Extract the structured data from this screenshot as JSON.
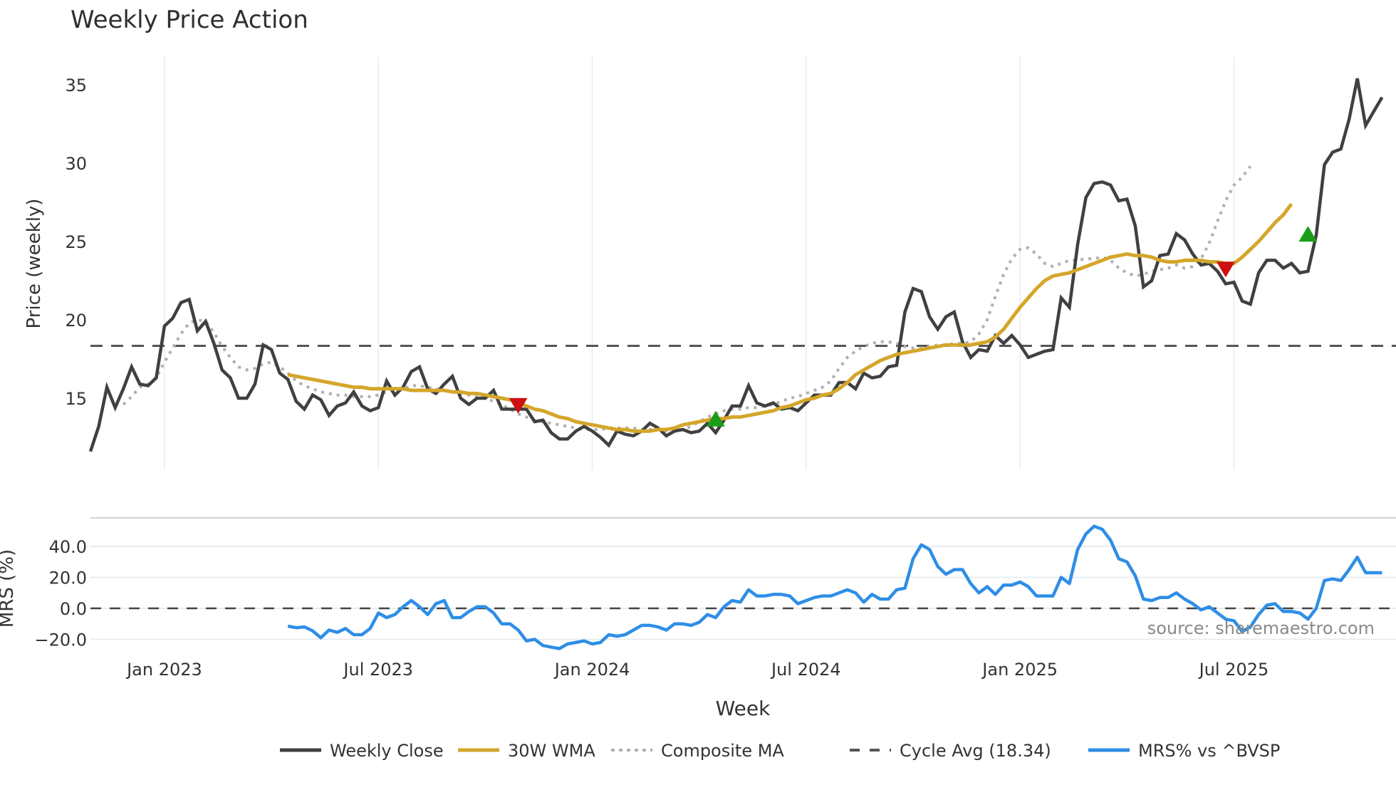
{
  "title": "Weekly Price Action",
  "source": "source: sharemaestro.com",
  "price_panel": {
    "ylabel": "Price (weekly)",
    "yticks": [
      15,
      20,
      25,
      30,
      35
    ]
  },
  "mrs_panel": {
    "ylabel": "MRS (%)",
    "yticks": [
      "−20.0",
      "0.0",
      "20.0",
      "40.0"
    ]
  },
  "xaxis": {
    "label": "Week",
    "ticks": [
      "Jan 2023",
      "Jul 2023",
      "Jan 2024",
      "Jul 2024",
      "Jan 2025",
      "Jul 2025"
    ]
  },
  "legend": [
    {
      "label": "Weekly Close",
      "color": "#404040",
      "style": "solid"
    },
    {
      "label": "30W WMA",
      "color": "#d4a62a",
      "style": "solid"
    },
    {
      "label": "Composite MA",
      "color": "#b0b0b0",
      "style": "dotted"
    },
    {
      "label": "Cycle Avg (18.34)",
      "color": "#555555",
      "style": "dashed"
    },
    {
      "label": "MRS% vs ^BVSP",
      "color": "#2e8ee6",
      "style": "solid"
    }
  ],
  "colors": {
    "close": "#404040",
    "wma": "#d4a62a",
    "composite": "#b0b0b0",
    "cycle": "#555555",
    "mrs": "#2e8ee6",
    "buy": "#1a9e1a",
    "sell": "#cc1111",
    "grid": "#e8ecf2"
  },
  "chart_data": [
    {
      "type": "line",
      "title": "Weekly Price Action",
      "xlabel": "Week",
      "ylabel": "Price (weekly)",
      "ylim": [
        10.8,
        36.5
      ],
      "x_start_week_offset": -9,
      "x_tick_labels": [
        "Jan 2023",
        "Jul 2023",
        "Jan 2024",
        "Jul 2024",
        "Jan 2025",
        "Jul 2025"
      ],
      "x_tick_week_index": [
        9,
        35,
        61,
        87,
        113,
        139
      ],
      "cycle_avg": 18.34,
      "series": [
        {
          "name": "Weekly Close",
          "values": [
            11.6,
            13.2,
            15.7,
            14.4,
            15.6,
            17.0,
            15.9,
            15.8,
            16.3,
            19.6,
            20.1,
            21.1,
            21.3,
            19.3,
            19.9,
            18.5,
            16.8,
            16.3,
            15.0,
            15.0,
            15.9,
            18.4,
            18.1,
            16.6,
            16.2,
            14.8,
            14.3,
            15.2,
            14.9,
            13.9,
            14.5,
            14.7,
            15.4,
            14.5,
            14.2,
            14.4,
            16.1,
            15.2,
            15.7,
            16.7,
            17.0,
            15.6,
            15.3,
            15.9,
            16.4,
            15.0,
            14.6,
            15.0,
            15.0,
            15.5,
            14.3,
            14.3,
            14.3,
            14.3,
            13.5,
            13.6,
            12.8,
            12.4,
            12.4,
            12.9,
            13.2,
            12.9,
            12.5,
            12.0,
            12.9,
            12.7,
            12.6,
            12.9,
            13.4,
            13.1,
            12.6,
            12.9,
            13.0,
            12.8,
            12.9,
            13.4,
            12.8,
            13.6,
            14.5,
            14.5,
            15.8,
            14.7,
            14.5,
            14.7,
            14.3,
            14.4,
            14.2,
            14.7,
            15.2,
            15.2,
            15.2,
            16.0,
            16.0,
            15.6,
            16.6,
            16.3,
            16.4,
            17.0,
            17.1,
            20.5,
            22.0,
            21.8,
            20.2,
            19.4,
            20.2,
            20.5,
            18.6,
            17.6,
            18.1,
            18.0,
            19.0,
            18.5,
            19.0,
            18.4,
            17.6,
            17.8,
            18.0,
            18.1,
            21.4,
            20.8,
            24.8,
            27.8,
            28.7,
            28.8,
            28.6,
            27.6,
            27.7,
            26.0,
            22.1,
            22.5,
            24.1,
            24.2,
            25.5,
            25.1,
            24.2,
            23.5,
            23.6,
            23.1,
            22.3,
            22.4,
            21.2,
            21.0,
            23.0,
            23.8,
            23.8,
            23.3,
            23.6,
            23.0,
            23.1,
            25.4,
            29.9,
            30.7,
            30.9,
            32.8,
            35.4,
            32.4,
            33.3,
            34.2
          ]
        },
        {
          "name": "30W WMA",
          "start_index": 24,
          "values": [
            16.5,
            16.4,
            16.3,
            16.2,
            16.1,
            16.0,
            15.9,
            15.8,
            15.7,
            15.7,
            15.6,
            15.6,
            15.6,
            15.6,
            15.6,
            15.5,
            15.5,
            15.5,
            15.5,
            15.5,
            15.4,
            15.4,
            15.3,
            15.3,
            15.2,
            15.1,
            15.0,
            14.9,
            14.7,
            14.5,
            14.3,
            14.2,
            14.0,
            13.8,
            13.7,
            13.5,
            13.4,
            13.3,
            13.2,
            13.1,
            13.0,
            13.0,
            12.9,
            12.9,
            12.9,
            13.0,
            13.0,
            13.1,
            13.3,
            13.4,
            13.5,
            13.6,
            13.7,
            13.7,
            13.8,
            13.8,
            13.9,
            14.0,
            14.1,
            14.2,
            14.4,
            14.5,
            14.7,
            14.9,
            15.0,
            15.2,
            15.3,
            15.6,
            16.0,
            16.5,
            16.8,
            17.1,
            17.4,
            17.6,
            17.8,
            17.9,
            18.0,
            18.1,
            18.2,
            18.3,
            18.4,
            18.4,
            18.4,
            18.4,
            18.5,
            18.6,
            18.9,
            19.4,
            20.1,
            20.8,
            21.4,
            22.0,
            22.5,
            22.8,
            22.9,
            23.0,
            23.2,
            23.4,
            23.6,
            23.8,
            24.0,
            24.1,
            24.2,
            24.1,
            24.1,
            24.0,
            23.8,
            23.7,
            23.7,
            23.8,
            23.8,
            23.8,
            23.7,
            23.7,
            23.6,
            23.6,
            24.0,
            24.5,
            25.0,
            25.6,
            26.2,
            26.7,
            27.4
          ]
        },
        {
          "name": "Composite MA",
          "start_index": 4,
          "values": [
            14.6,
            15.1,
            15.7,
            15.9,
            16.3,
            17.3,
            18.2,
            19.1,
            19.8,
            20.0,
            19.9,
            19.2,
            18.3,
            17.6,
            17.0,
            16.8,
            16.9,
            17.2,
            17.3,
            17.0,
            16.6,
            16.1,
            15.8,
            15.6,
            15.4,
            15.3,
            15.2,
            15.2,
            15.1,
            15.1,
            15.1,
            15.2,
            15.4,
            15.5,
            15.6,
            15.8,
            15.8,
            15.7,
            15.6,
            15.5,
            15.4,
            15.3,
            15.2,
            15.1,
            15.0,
            14.8,
            14.6,
            14.3,
            14.0,
            13.8,
            13.6,
            13.5,
            13.4,
            13.3,
            13.2,
            13.1,
            13.0,
            13.0,
            13.0,
            13.1,
            13.1,
            13.1,
            13.1,
            13.0,
            13.0,
            13.0,
            12.9,
            12.9,
            13.0,
            13.2,
            13.5,
            13.8,
            14.0,
            14.2,
            14.3,
            14.3,
            14.4,
            14.4,
            14.5,
            14.6,
            14.8,
            15.0,
            15.1,
            15.3,
            15.5,
            15.7,
            16.1,
            16.9,
            17.6,
            18.0,
            18.3,
            18.5,
            18.6,
            18.6,
            18.5,
            18.3,
            18.2,
            18.2,
            18.3,
            18.4,
            18.4,
            18.5,
            18.5,
            18.6,
            19.1,
            20.0,
            21.5,
            22.9,
            23.9,
            24.5,
            24.6,
            24.2,
            23.6,
            23.4,
            23.6,
            23.8,
            23.8,
            23.9,
            23.9,
            24.0,
            23.8,
            23.3,
            23.0,
            22.8,
            22.9,
            23.1,
            23.2,
            23.3,
            23.5,
            23.3,
            23.4,
            23.9,
            24.9,
            26.3,
            27.6,
            28.6,
            29.1,
            29.8
          ]
        },
        {
          "name": "Cycle Avg (18.34)",
          "values": [
            18.34
          ]
        }
      ],
      "markers": [
        {
          "type": "sell",
          "week_index": 52,
          "value": 14.6
        },
        {
          "type": "buy",
          "week_index": 76,
          "value": 13.6
        },
        {
          "type": "sell",
          "week_index": 138,
          "value": 23.3
        },
        {
          "type": "buy",
          "week_index": 148,
          "value": 25.4
        }
      ]
    },
    {
      "type": "line",
      "title": "",
      "xlabel": "Week",
      "ylabel": "MRS (%)",
      "ylim": [
        -25,
        55
      ],
      "zero_line": 0,
      "series": [
        {
          "name": "MRS% vs ^BVSP",
          "start_index": 24,
          "values": [
            -11.5,
            -12.5,
            -12,
            -14.5,
            -19,
            -14,
            -15.5,
            -13,
            -17,
            -17,
            -13,
            -3,
            -6,
            -4,
            1,
            5,
            1,
            -4,
            3,
            5,
            -6,
            -6,
            -2,
            1,
            1,
            -3,
            -10,
            -10,
            -14,
            -21,
            -20,
            -24,
            -25,
            -26,
            -23,
            -22,
            -21,
            -23,
            -22,
            -17,
            -18,
            -17,
            -14,
            -11,
            -11,
            -12,
            -14,
            -10,
            -10,
            -11,
            -9,
            -4,
            -6,
            1,
            5,
            4,
            12,
            8,
            8,
            9,
            9,
            8,
            3,
            5,
            7,
            8,
            8,
            10,
            12,
            10,
            4,
            9,
            6,
            6,
            12,
            13,
            32,
            41,
            38,
            27,
            22,
            25,
            25,
            16,
            10,
            14,
            9,
            15,
            15,
            17,
            14,
            8,
            8,
            8,
            20,
            16,
            38,
            48,
            53,
            51,
            44,
            32,
            30,
            21,
            6,
            5,
            7,
            7,
            10,
            6,
            3,
            -1,
            1,
            -3,
            -7,
            -8,
            -15,
            -12,
            -4,
            2,
            3,
            -2,
            -2,
            -3,
            -7,
            0,
            18,
            19,
            18,
            25,
            33,
            23,
            23,
            23
          ]
        }
      ]
    }
  ]
}
